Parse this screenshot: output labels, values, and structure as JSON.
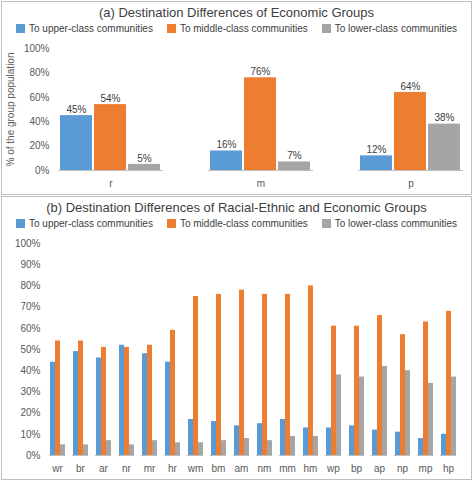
{
  "chart_data": [
    {
      "type": "bar",
      "title": "(a) Destination Differences of Economic Groups",
      "ylabel": "% of the group population",
      "categories": [
        "r",
        "m",
        "p"
      ],
      "series": [
        {
          "name": "To upper-class communities",
          "color": "#5b9bd5",
          "values": [
            45,
            16,
            12
          ],
          "value_labels": [
            "45%",
            "16%",
            "12%"
          ]
        },
        {
          "name": "To middle-class communities",
          "color": "#ed7d31",
          "values": [
            54,
            76,
            64
          ],
          "value_labels": [
            "54%",
            "76%",
            "64%"
          ]
        },
        {
          "name": "To lower-class communities",
          "color": "#a5a5a5",
          "values": [
            5,
            7,
            38
          ],
          "value_labels": [
            "5%",
            "7%",
            "38%"
          ]
        }
      ],
      "ylim": [
        0,
        100
      ],
      "yticks": [
        {
          "value": 0,
          "label": "0%"
        },
        {
          "value": 20,
          "label": "20%"
        },
        {
          "value": 40,
          "label": "40%"
        },
        {
          "value": 60,
          "label": "60%"
        },
        {
          "value": 80,
          "label": "80%"
        },
        {
          "value": 100,
          "label": "100%"
        }
      ],
      "grid": false,
      "legend": "top",
      "data_labels": true
    },
    {
      "type": "bar",
      "title": "(b) Destination Differences of Racial-Ethnic and Economic Groups",
      "categories": [
        "wr",
        "br",
        "ar",
        "nr",
        "mr",
        "hr",
        "wm",
        "bm",
        "am",
        "nm",
        "mm",
        "hm",
        "wp",
        "bp",
        "ap",
        "np",
        "mp",
        "hp"
      ],
      "series": [
        {
          "name": "To upper-class communities",
          "color": "#5b9bd5",
          "values": [
            44,
            49,
            46,
            52,
            48,
            44,
            17,
            16,
            14,
            15,
            17,
            13,
            13,
            14,
            12,
            11,
            8,
            10
          ]
        },
        {
          "name": "To middle-class communities",
          "color": "#ed7d31",
          "values": [
            54,
            54,
            51,
            51,
            52,
            59,
            75,
            76,
            78,
            76,
            76,
            80,
            61,
            61,
            66,
            57,
            63,
            68
          ]
        },
        {
          "name": "To lower-class communities",
          "color": "#a5a5a5",
          "values": [
            5,
            5,
            7,
            5,
            7,
            6,
            6,
            7,
            8,
            7,
            9,
            9,
            38,
            37,
            42,
            40,
            34,
            37
          ]
        }
      ],
      "ylim": [
        0,
        100
      ],
      "yticks": [
        {
          "value": 0,
          "label": "0%"
        },
        {
          "value": 10,
          "label": "10%"
        },
        {
          "value": 20,
          "label": "20%"
        },
        {
          "value": 30,
          "label": "30%"
        },
        {
          "value": 40,
          "label": "40%"
        },
        {
          "value": 50,
          "label": "50%"
        },
        {
          "value": 60,
          "label": "60%"
        },
        {
          "value": 70,
          "label": "70%"
        },
        {
          "value": 80,
          "label": "80%"
        },
        {
          "value": 90,
          "label": "90%"
        },
        {
          "value": 100,
          "label": "100%"
        }
      ],
      "grid": false,
      "legend": "top",
      "data_labels": false
    }
  ]
}
